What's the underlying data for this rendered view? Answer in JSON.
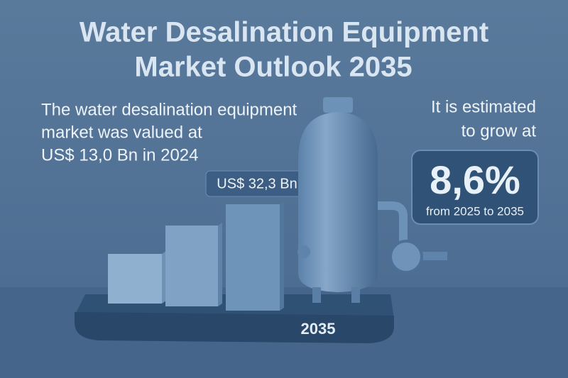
{
  "title": {
    "lines": [
      "Water Desalination Equipment",
      "Market Outlook 2035"
    ]
  },
  "left_text": {
    "lines": [
      "The water desalination equipment",
      "market was valued at",
      "US$ 13,0 Bn in 2024"
    ]
  },
  "bar_badge": "US$ 32,3 Bn",
  "right_text": {
    "lines": [
      "It is estimated",
      "to grow at"
    ]
  },
  "growth_box": {
    "rate": "8,6%",
    "period": "from 2025 to 2035"
  },
  "base_label": "2035"
}
